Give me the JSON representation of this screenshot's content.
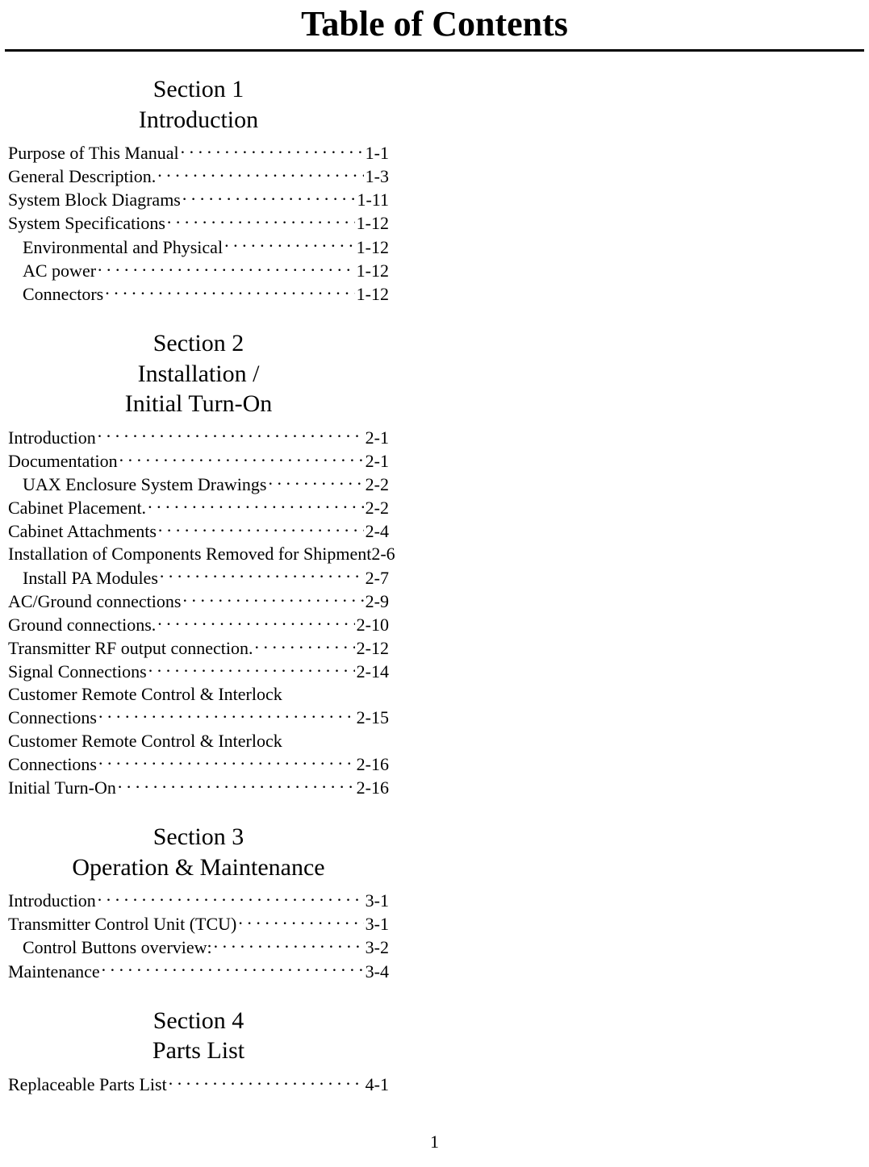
{
  "title": "Table of Contents",
  "page_number": "1",
  "sections": [
    {
      "label": "Section 1",
      "title": "Introduction",
      "entries": [
        {
          "text": "Purpose of This Manual",
          "page": "1-1",
          "indent": 0
        },
        {
          "text": "General Description",
          "page": "1-3",
          "indent": 0,
          "trail": "."
        },
        {
          "text": "System Block Diagrams",
          "page": "1-11",
          "indent": 0
        },
        {
          "text": "System Specifications",
          "page": "1-12",
          "indent": 0
        },
        {
          "text": "Environmental and Physical",
          "page": "1-12",
          "indent": 1
        },
        {
          "text": "AC power",
          "page": "1-12",
          "indent": 1
        },
        {
          "text": "Connectors",
          "page": "1-12",
          "indent": 1
        }
      ]
    },
    {
      "label": "Section 2",
      "title": "Installation / Initial Turn-On",
      "title_lines": [
        "Installation /",
        "Initial Turn-On"
      ],
      "entries": [
        {
          "text": "Introduction",
          "page": "2-1",
          "indent": 0
        },
        {
          "text": "Documentation",
          "page": "2-1",
          "indent": 0
        },
        {
          "text": "UAX Enclosure System Drawings",
          "page": "2-2",
          "indent": 1
        },
        {
          "text": "Cabinet Placement",
          "page": "2-2",
          "indent": 0,
          "trail": "."
        },
        {
          "text": "Cabinet Attachments",
          "page": "2-4",
          "indent": 0
        },
        {
          "text": "Installation of Components Removed for Shipment",
          "page": "2-6",
          "indent": 0,
          "noleader": true
        },
        {
          "text": "Install PA Modules",
          "page": "2-7",
          "indent": 1
        },
        {
          "text": "AC/Ground connections",
          "page": "2-9",
          "indent": 0
        },
        {
          "text": "Ground connections",
          "page": "2-10",
          "indent": 0,
          "trail": "."
        },
        {
          "text": "Transmitter RF output connection",
          "page": "2-12",
          "indent": 0,
          "trail": "."
        },
        {
          "text": "Signal Connections",
          "page": "2-14",
          "indent": 0
        },
        {
          "text": "Customer Remote Control & Interlock Connections",
          "text_lines": [
            "Customer Remote Control & Interlock",
            "Connections"
          ],
          "page": "2-15",
          "indent": 0,
          "wrap": true
        },
        {
          "text": "Customer Remote Control & Interlock Connections",
          "text_lines": [
            "Customer Remote Control & Interlock",
            "Connections"
          ],
          "page": "2-16",
          "indent": 0,
          "wrap": true
        },
        {
          "text": "Initial Turn-On",
          "page": "2-16",
          "indent": 0
        }
      ]
    },
    {
      "label": "Section 3",
      "title": "Operation & Maintenance",
      "entries": [
        {
          "text": "Introduction",
          "page": "3-1",
          "indent": 0
        },
        {
          "text": "Transmitter Control Unit (TCU)",
          "page": "3-1",
          "indent": 0
        },
        {
          "text": "Control Buttons overview:",
          "page": "3-2",
          "indent": 1
        },
        {
          "text": "Maintenance",
          "page": "3-4",
          "indent": 0
        }
      ]
    },
    {
      "label": "Section 4",
      "title": "Parts List",
      "entries": [
        {
          "text": "Replaceable Parts List",
          "page": "4-1",
          "indent": 0
        }
      ]
    }
  ]
}
